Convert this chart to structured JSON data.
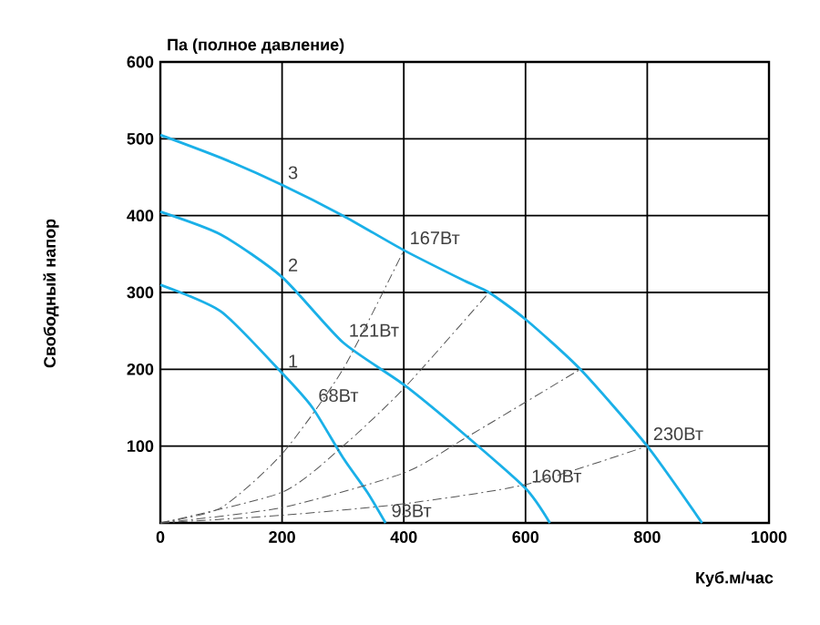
{
  "chart_data": {
    "type": "line",
    "title": "Па (полное давление)",
    "xlabel": "Куб.м/час",
    "ylabel": "Свободный напор",
    "xlim": [
      0,
      1000
    ],
    "ylim": [
      0,
      600
    ],
    "xticks": [
      0,
      200,
      400,
      600,
      800,
      1000
    ],
    "yticks": [
      {
        "value": 0,
        "label": null
      },
      100,
      200,
      300,
      400,
      500,
      600
    ],
    "grid": true,
    "series": [
      {
        "color": "#1ab0e8",
        "line_style": "solid",
        "x": [
          0,
          100,
          200,
          250,
          300,
          340,
          370
        ],
        "values": [
          310,
          275,
          195,
          150,
          85,
          40,
          0
        ]
      },
      {
        "color": "#1ab0e8",
        "line_style": "solid",
        "x": [
          0,
          100,
          200,
          300,
          400,
          500,
          600,
          640
        ],
        "values": [
          405,
          375,
          320,
          235,
          180,
          115,
          45,
          0
        ]
      },
      {
        "color": "#1ab0e8",
        "line_style": "solid",
        "x": [
          0,
          100,
          200,
          300,
          400,
          500,
          540,
          600,
          690,
          800,
          890
        ],
        "values": [
          505,
          475,
          440,
          400,
          355,
          315,
          300,
          265,
          200,
          100,
          0
        ]
      },
      {
        "color": "#555555",
        "line_style": "dashed",
        "x": [
          0,
          100,
          200,
          300,
          400
        ],
        "values": [
          0,
          20,
          90,
          200,
          355
        ]
      },
      {
        "color": "#555555",
        "line_style": "dashed",
        "x": [
          0,
          200,
          300,
          400,
          540
        ],
        "values": [
          0,
          40,
          100,
          175,
          300
        ]
      },
      {
        "color": "#555555",
        "line_style": "dashed",
        "x": [
          0,
          200,
          400,
          500,
          690
        ],
        "values": [
          0,
          20,
          65,
          110,
          200
        ]
      },
      {
        "color": "#555555",
        "line_style": "dashed",
        "x": [
          0,
          200,
          400,
          600,
          800
        ],
        "values": [
          0,
          10,
          25,
          50,
          100
        ]
      }
    ],
    "annotations": [
      {
        "text": "1",
        "x": 200,
        "y": 195
      },
      {
        "text": "2",
        "x": 200,
        "y": 320
      },
      {
        "text": "3",
        "x": 200,
        "y": 440
      },
      {
        "text": "167Вт",
        "x": 400,
        "y": 355
      },
      {
        "text": "121Вт",
        "x": 300,
        "y": 235
      },
      {
        "text": "68Вт",
        "x": 250,
        "y": 150
      },
      {
        "text": "93Вт",
        "x": 370,
        "y": 0
      },
      {
        "text": "160Вт",
        "x": 600,
        "y": 45
      },
      {
        "text": "230Вт",
        "x": 800,
        "y": 100
      }
    ]
  }
}
